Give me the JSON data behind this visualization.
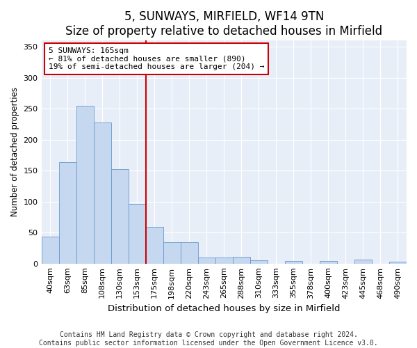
{
  "title": "5, SUNWAYS, MIRFIELD, WF14 9TN",
  "subtitle": "Size of property relative to detached houses in Mirfield",
  "xlabel": "Distribution of detached houses by size in Mirfield",
  "ylabel": "Number of detached properties",
  "categories": [
    "40sqm",
    "63sqm",
    "85sqm",
    "108sqm",
    "130sqm",
    "153sqm",
    "175sqm",
    "198sqm",
    "220sqm",
    "243sqm",
    "265sqm",
    "288sqm",
    "310sqm",
    "333sqm",
    "355sqm",
    "378sqm",
    "400sqm",
    "423sqm",
    "445sqm",
    "468sqm",
    "490sqm"
  ],
  "values": [
    44,
    164,
    255,
    228,
    152,
    96,
    59,
    35,
    35,
    10,
    10,
    11,
    5,
    0,
    4,
    0,
    4,
    0,
    6,
    0,
    3
  ],
  "bar_color": "#c5d8f0",
  "bar_edge_color": "#6699cc",
  "vline_x": 5.5,
  "vline_color": "#cc0000",
  "annotation_text": "5 SUNWAYS: 165sqm\n← 81% of detached houses are smaller (890)\n19% of semi-detached houses are larger (204) →",
  "annotation_box_color": "#ffffff",
  "annotation_box_edge": "#cc0000",
  "ylim": [
    0,
    360
  ],
  "yticks": [
    0,
    50,
    100,
    150,
    200,
    250,
    300,
    350
  ],
  "plot_bg_color": "#e8eef8",
  "footer": "Contains HM Land Registry data © Crown copyright and database right 2024.\nContains public sector information licensed under the Open Government Licence v3.0.",
  "title_fontsize": 12,
  "subtitle_fontsize": 10,
  "xlabel_fontsize": 9.5,
  "ylabel_fontsize": 8.5,
  "tick_fontsize": 8,
  "footer_fontsize": 7
}
